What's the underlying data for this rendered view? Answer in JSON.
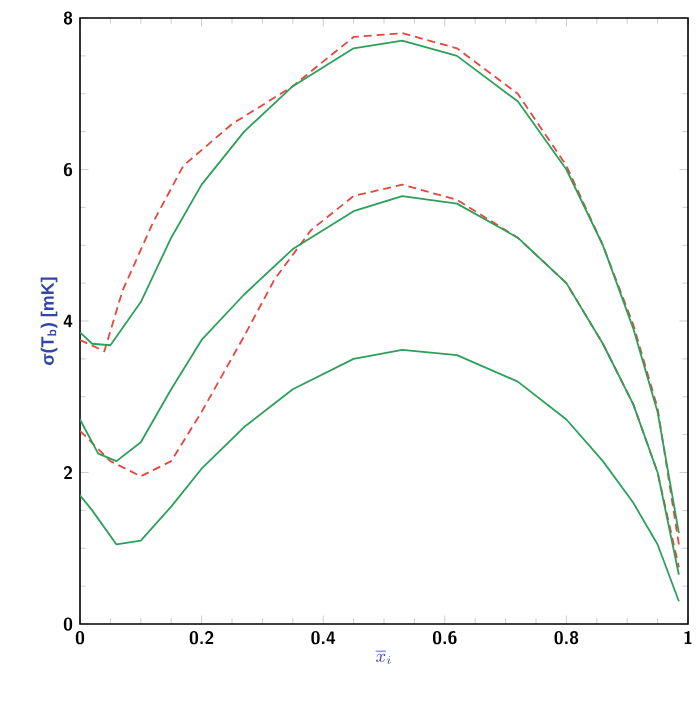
{
  "chart_data": {
    "type": "line",
    "xlabel": "\\overline{x}_{i}",
    "ylabel": "σ(T$_{b}$) [mK]",
    "xlim": [
      0,
      1
    ],
    "ylim": [
      0,
      8
    ],
    "xticks": [
      0,
      0.2,
      0.4,
      0.6,
      0.8,
      1
    ],
    "yticks": [
      0,
      2,
      4,
      6,
      8
    ],
    "grid": false,
    "marker": "none",
    "series": [
      {
        "color": "#e8453c",
        "line_style": "dashed",
        "x": [
          0,
          0.04,
          0.07,
          0.12,
          0.17,
          0.25,
          0.35,
          0.45,
          0.53,
          0.62,
          0.72,
          0.8,
          0.86,
          0.91,
          0.95,
          0.985
        ],
        "values": [
          3.75,
          3.6,
          4.4,
          5.3,
          6.05,
          6.6,
          7.1,
          7.75,
          7.8,
          7.6,
          7.0,
          6.05,
          5.0,
          3.95,
          2.85,
          1.05
        ]
      },
      {
        "color": "#e8453c",
        "line_style": "dashed",
        "x": [
          0,
          0.05,
          0.1,
          0.15,
          0.2,
          0.27,
          0.32,
          0.38,
          0.45,
          0.53,
          0.62,
          0.72,
          0.8,
          0.86,
          0.91,
          0.95,
          0.985
        ],
        "values": [
          2.55,
          2.15,
          1.95,
          2.15,
          2.8,
          3.8,
          4.55,
          5.2,
          5.65,
          5.8,
          5.6,
          5.1,
          4.5,
          3.7,
          2.9,
          2.0,
          0.75
        ]
      },
      {
        "color": "#2ca05a",
        "line_style": "solid",
        "x": [
          0,
          0.02,
          0.05,
          0.1,
          0.15,
          0.2,
          0.27,
          0.35,
          0.45,
          0.53,
          0.62,
          0.72,
          0.8,
          0.86,
          0.91,
          0.95,
          0.985
        ],
        "values": [
          3.85,
          3.7,
          3.68,
          4.25,
          5.1,
          5.8,
          6.5,
          7.1,
          7.6,
          7.7,
          7.5,
          6.9,
          6.0,
          5.0,
          3.9,
          2.8,
          1.2
        ]
      },
      {
        "color": "#2ca05a",
        "line_style": "solid",
        "x": [
          0,
          0.03,
          0.06,
          0.1,
          0.15,
          0.2,
          0.27,
          0.35,
          0.45,
          0.53,
          0.62,
          0.72,
          0.8,
          0.86,
          0.91,
          0.95,
          0.985
        ],
        "values": [
          2.7,
          2.25,
          2.15,
          2.4,
          3.1,
          3.75,
          4.35,
          4.95,
          5.45,
          5.65,
          5.55,
          5.1,
          4.5,
          3.7,
          2.9,
          2.0,
          0.65
        ]
      },
      {
        "color": "#2ca05a",
        "line_style": "solid",
        "x": [
          0,
          0.02,
          0.06,
          0.1,
          0.15,
          0.2,
          0.27,
          0.35,
          0.45,
          0.53,
          0.62,
          0.72,
          0.8,
          0.86,
          0.91,
          0.95,
          0.985
        ],
        "values": [
          1.7,
          1.5,
          1.05,
          1.1,
          1.55,
          2.05,
          2.6,
          3.1,
          3.5,
          3.62,
          3.55,
          3.2,
          2.7,
          2.15,
          1.6,
          1.05,
          0.3
        ]
      }
    ]
  }
}
